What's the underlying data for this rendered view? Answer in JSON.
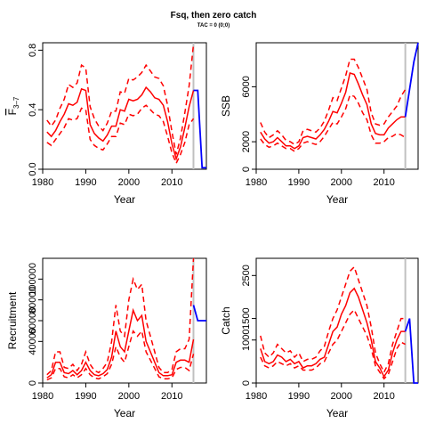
{
  "title": "Fsq, then zero catch",
  "subtitle": "TAC = 0 (0;0)",
  "colors": {
    "band": "#ff0000",
    "median": "#ff0000",
    "projection": "#0000ff",
    "marker": "#c0c0c0",
    "axis": "#000000"
  },
  "chart_data": [
    {
      "type": "line",
      "ylabel": "F̄ 3–7",
      "ylabel_main": "F",
      "ylabel_sub": "3–7",
      "xlabel": "Year",
      "xlim": [
        1980,
        2018
      ],
      "ylim": [
        0,
        0.85
      ],
      "xticks": [
        1980,
        1990,
        2000,
        2010
      ],
      "yticks": [
        0.0,
        0.4,
        0.8
      ],
      "ytick_labels": [
        "0.0",
        "0.4",
        "0.8"
      ],
      "marker_year": 2015,
      "historical": {
        "x": [
          1981,
          1982,
          1983,
          1984,
          1985,
          1986,
          1987,
          1988,
          1989,
          1990,
          1991,
          1992,
          1993,
          1994,
          1995,
          1996,
          1997,
          1998,
          1999,
          2000,
          2001,
          2002,
          2003,
          2004,
          2005,
          2006,
          2007,
          2008,
          2009,
          2010,
          2011,
          2012,
          2013,
          2014,
          2015
        ],
        "median": [
          0.25,
          0.22,
          0.26,
          0.32,
          0.37,
          0.44,
          0.43,
          0.45,
          0.54,
          0.53,
          0.3,
          0.24,
          0.21,
          0.19,
          0.23,
          0.29,
          0.29,
          0.4,
          0.39,
          0.47,
          0.46,
          0.47,
          0.5,
          0.55,
          0.52,
          0.48,
          0.47,
          0.43,
          0.32,
          0.17,
          0.07,
          0.15,
          0.28,
          0.42,
          0.53
        ],
        "lower": [
          0.18,
          0.16,
          0.2,
          0.24,
          0.28,
          0.34,
          0.33,
          0.34,
          0.41,
          0.4,
          0.2,
          0.16,
          0.14,
          0.13,
          0.17,
          0.22,
          0.22,
          0.31,
          0.3,
          0.37,
          0.36,
          0.37,
          0.41,
          0.43,
          0.4,
          0.37,
          0.36,
          0.32,
          0.22,
          0.11,
          0.04,
          0.1,
          0.18,
          0.3,
          0.34
        ],
        "upper": [
          0.33,
          0.29,
          0.33,
          0.41,
          0.47,
          0.57,
          0.55,
          0.58,
          0.7,
          0.68,
          0.42,
          0.34,
          0.29,
          0.26,
          0.31,
          0.39,
          0.39,
          0.52,
          0.51,
          0.61,
          0.6,
          0.62,
          0.65,
          0.7,
          0.66,
          0.62,
          0.61,
          0.56,
          0.43,
          0.25,
          0.1,
          0.21,
          0.38,
          0.56,
          0.84
        ]
      },
      "projection": {
        "x": [
          2015,
          2016,
          2017,
          2018
        ],
        "values": [
          0.53,
          0.53,
          0.01,
          0.01
        ]
      }
    },
    {
      "type": "line",
      "ylabel": "SSB",
      "xlabel": "Year",
      "xlim": [
        1980,
        2018
      ],
      "ylim": [
        0,
        9200
      ],
      "xticks": [
        1980,
        1990,
        2000,
        2010
      ],
      "yticks": [
        0,
        2000,
        6000
      ],
      "ytick_labels": [
        "0",
        "2000",
        "6000"
      ],
      "marker_year": 2015,
      "historical": {
        "x": [
          1981,
          1982,
          1983,
          1984,
          1985,
          1986,
          1987,
          1988,
          1989,
          1990,
          1991,
          1992,
          1993,
          1994,
          1995,
          1996,
          1997,
          1998,
          1999,
          2000,
          2001,
          2002,
          2003,
          2004,
          2005,
          2006,
          2007,
          2008,
          2009,
          2010,
          2011,
          2012,
          2013,
          2014,
          2015
        ],
        "median": [
          2700,
          2200,
          1900,
          2000,
          2300,
          2000,
          1700,
          1700,
          1500,
          1700,
          2300,
          2400,
          2300,
          2200,
          2500,
          2900,
          3500,
          4200,
          4100,
          4800,
          5600,
          7000,
          6900,
          6200,
          5400,
          4700,
          3300,
          2600,
          2500,
          2500,
          3000,
          3300,
          3600,
          3800,
          3800
        ],
        "lower": [
          2200,
          1800,
          1600,
          1700,
          1900,
          1700,
          1500,
          1500,
          1300,
          1500,
          1900,
          2000,
          1900,
          1800,
          2000,
          2400,
          2900,
          3400,
          3300,
          3800,
          4400,
          5400,
          5300,
          4800,
          4100,
          3600,
          2500,
          1900,
          1900,
          2000,
          2300,
          2400,
          2600,
          2500,
          2300
        ],
        "upper": [
          3400,
          2700,
          2300,
          2500,
          2800,
          2500,
          2100,
          2000,
          1800,
          2000,
          2800,
          2900,
          2800,
          2700,
          3000,
          3500,
          4300,
          5200,
          5000,
          5900,
          6800,
          8000,
          8000,
          7400,
          6600,
          5800,
          4100,
          3300,
          3200,
          3300,
          3800,
          4200,
          4600,
          5300,
          5800
        ]
      },
      "projection": {
        "x": [
          2015,
          2016,
          2017,
          2018
        ],
        "values": [
          3800,
          5800,
          7800,
          9200
        ]
      }
    },
    {
      "type": "line",
      "ylabel": "Recruitment",
      "xlabel": "Year",
      "xlim": [
        1980,
        2018
      ],
      "ylim": [
        0,
        120000
      ],
      "xticks": [
        1980,
        1990,
        2000,
        2010
      ],
      "yticks": [
        0,
        40000,
        60000,
        80000,
        100000
      ],
      "ytick_labels": [
        "0",
        "40000",
        "60000",
        "80000",
        "100000"
      ],
      "marker_year": 2015,
      "historical": {
        "x": [
          1981,
          1982,
          1983,
          1984,
          1985,
          1986,
          1987,
          1988,
          1989,
          1990,
          1991,
          1992,
          1993,
          1994,
          1995,
          1996,
          1997,
          1998,
          1999,
          2000,
          2001,
          2002,
          2003,
          2004,
          2005,
          2006,
          2007,
          2008,
          2009,
          2010,
          2011,
          2012,
          2013,
          2014,
          2015
        ],
        "median": [
          5000,
          8000,
          20000,
          20000,
          10000,
          9000,
          12000,
          8000,
          12000,
          20000,
          12000,
          8000,
          7000,
          9000,
          13000,
          25000,
          50000,
          35000,
          30000,
          50000,
          70000,
          60000,
          65000,
          40000,
          30000,
          20000,
          10000,
          7000,
          7000,
          8000,
          20000,
          22000,
          22000,
          20000,
          42000
        ],
        "lower": [
          3000,
          5000,
          14000,
          14000,
          6000,
          5000,
          8000,
          5000,
          8000,
          14000,
          8000,
          5000,
          4000,
          6000,
          9000,
          18000,
          35000,
          25000,
          20000,
          35000,
          50000,
          45000,
          50000,
          30000,
          22000,
          14000,
          6000,
          4000,
          4000,
          5000,
          13000,
          15000,
          15000,
          12000,
          28000
        ],
        "upper": [
          8000,
          12000,
          30000,
          30000,
          15000,
          14000,
          18000,
          12000,
          18000,
          30000,
          18000,
          12000,
          10000,
          14000,
          20000,
          40000,
          75000,
          50000,
          45000,
          80000,
          100000,
          90000,
          95000,
          60000,
          45000,
          30000,
          15000,
          10000,
          10000,
          13000,
          30000,
          33000,
          33000,
          42000,
          120000
        ]
      },
      "projection": {
        "x": [
          2015,
          2016,
          2017,
          2018
        ],
        "values": [
          75000,
          60000,
          60000,
          60000
        ]
      }
    },
    {
      "type": "line",
      "ylabel": "Catch",
      "xlabel": "Year",
      "xlim": [
        1980,
        2018
      ],
      "ylim": [
        0,
        2900
      ],
      "xticks": [
        1980,
        1990,
        2000,
        2010
      ],
      "yticks": [
        0,
        1000,
        1500,
        2500
      ],
      "ytick_labels": [
        "0",
        "1000",
        "1500",
        "2500"
      ],
      "marker_year": 2015,
      "historical": {
        "x": [
          1981,
          1982,
          1983,
          1984,
          1985,
          1986,
          1987,
          1988,
          1989,
          1990,
          1991,
          1992,
          1993,
          1994,
          1995,
          1996,
          1997,
          1998,
          1999,
          2000,
          2001,
          2002,
          2003,
          2004,
          2005,
          2006,
          2007,
          2008,
          2009,
          2010,
          2011,
          2012,
          2013,
          2014,
          2015
        ],
        "median": [
          800,
          500,
          450,
          500,
          650,
          600,
          500,
          550,
          450,
          500,
          350,
          400,
          400,
          450,
          550,
          600,
          900,
          1200,
          1300,
          1600,
          1800,
          2100,
          2200,
          2000,
          1700,
          1400,
          1000,
          500,
          350,
          150,
          300,
          700,
          1000,
          1200,
          1200
        ],
        "lower": [
          600,
          400,
          350,
          400,
          500,
          450,
          400,
          450,
          350,
          400,
          300,
          300,
          300,
          350,
          450,
          500,
          700,
          900,
          1000,
          1200,
          1400,
          1600,
          1700,
          1500,
          1300,
          1100,
          800,
          400,
          250,
          100,
          200,
          500,
          800,
          950,
          900
        ],
        "upper": [
          1100,
          700,
          600,
          700,
          900,
          800,
          700,
          750,
          600,
          700,
          500,
          550,
          550,
          600,
          750,
          850,
          1200,
          1500,
          1700,
          2000,
          2300,
          2600,
          2700,
          2400,
          2100,
          1800,
          1300,
          700,
          450,
          250,
          450,
          900,
          1200,
          1500,
          1500
        ]
      },
      "projection": {
        "x": [
          2015,
          2016,
          2017,
          2018
        ],
        "values": [
          1200,
          1500,
          0,
          0
        ]
      }
    }
  ]
}
